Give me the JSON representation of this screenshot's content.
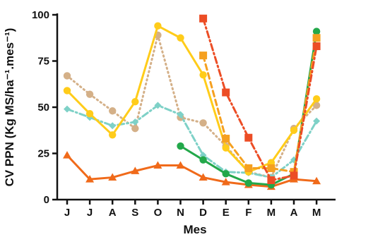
{
  "chart_data": {
    "type": "line",
    "title": "",
    "xlabel": "Mes",
    "ylabel": "CV PPN (Kg MS/ha⁻¹.mes⁻¹)",
    "categories": [
      "J",
      "J",
      "A",
      "S",
      "O",
      "N",
      "D",
      "E",
      "F",
      "M",
      "A",
      "M"
    ],
    "ylim": [
      0,
      100
    ],
    "yticks": [
      "0",
      "25",
      "50",
      "75",
      "100"
    ],
    "grid": false,
    "legend": "none",
    "series": [
      {
        "color": "#f06a1a",
        "marker": "triangle",
        "line": "solid",
        "values": [
          24,
          11,
          12,
          15.5,
          18.5,
          18.5,
          12,
          9.5,
          8,
          7,
          11,
          10
        ]
      },
      {
        "color": "#d4b088",
        "marker": "circle",
        "line": "dotted",
        "values": [
          67,
          57,
          48,
          38.5,
          89,
          44.5,
          41.5,
          29,
          15,
          12,
          38.5,
          51
        ]
      },
      {
        "color": "#7ed1c7",
        "marker": "diamond",
        "line": "dashdot",
        "values": [
          49,
          44.5,
          40,
          42,
          51,
          46,
          24,
          15,
          14.5,
          12,
          21.5,
          42.5
        ]
      },
      {
        "color": "#ffcc1a",
        "marker": "circle",
        "line": "solid",
        "values": [
          59,
          46.5,
          35,
          53,
          94,
          87.5,
          67.5,
          28,
          15,
          20,
          37.5,
          54.5
        ]
      },
      {
        "color": "#23a84a",
        "marker": "circle",
        "line": "solid",
        "values": [
          null,
          null,
          null,
          null,
          null,
          29,
          21.5,
          14,
          9,
          8,
          14,
          91
        ]
      },
      {
        "color": "#f5a020",
        "marker": "square",
        "line": "dashed",
        "values": [
          null,
          null,
          null,
          null,
          null,
          null,
          78,
          33,
          17,
          17,
          15,
          87.5
        ]
      },
      {
        "color": "#ec4d25",
        "marker": "square",
        "line": "dashdot",
        "values": [
          null,
          null,
          null,
          null,
          null,
          null,
          98,
          58,
          33.5,
          10.5,
          13,
          83
        ]
      }
    ]
  }
}
